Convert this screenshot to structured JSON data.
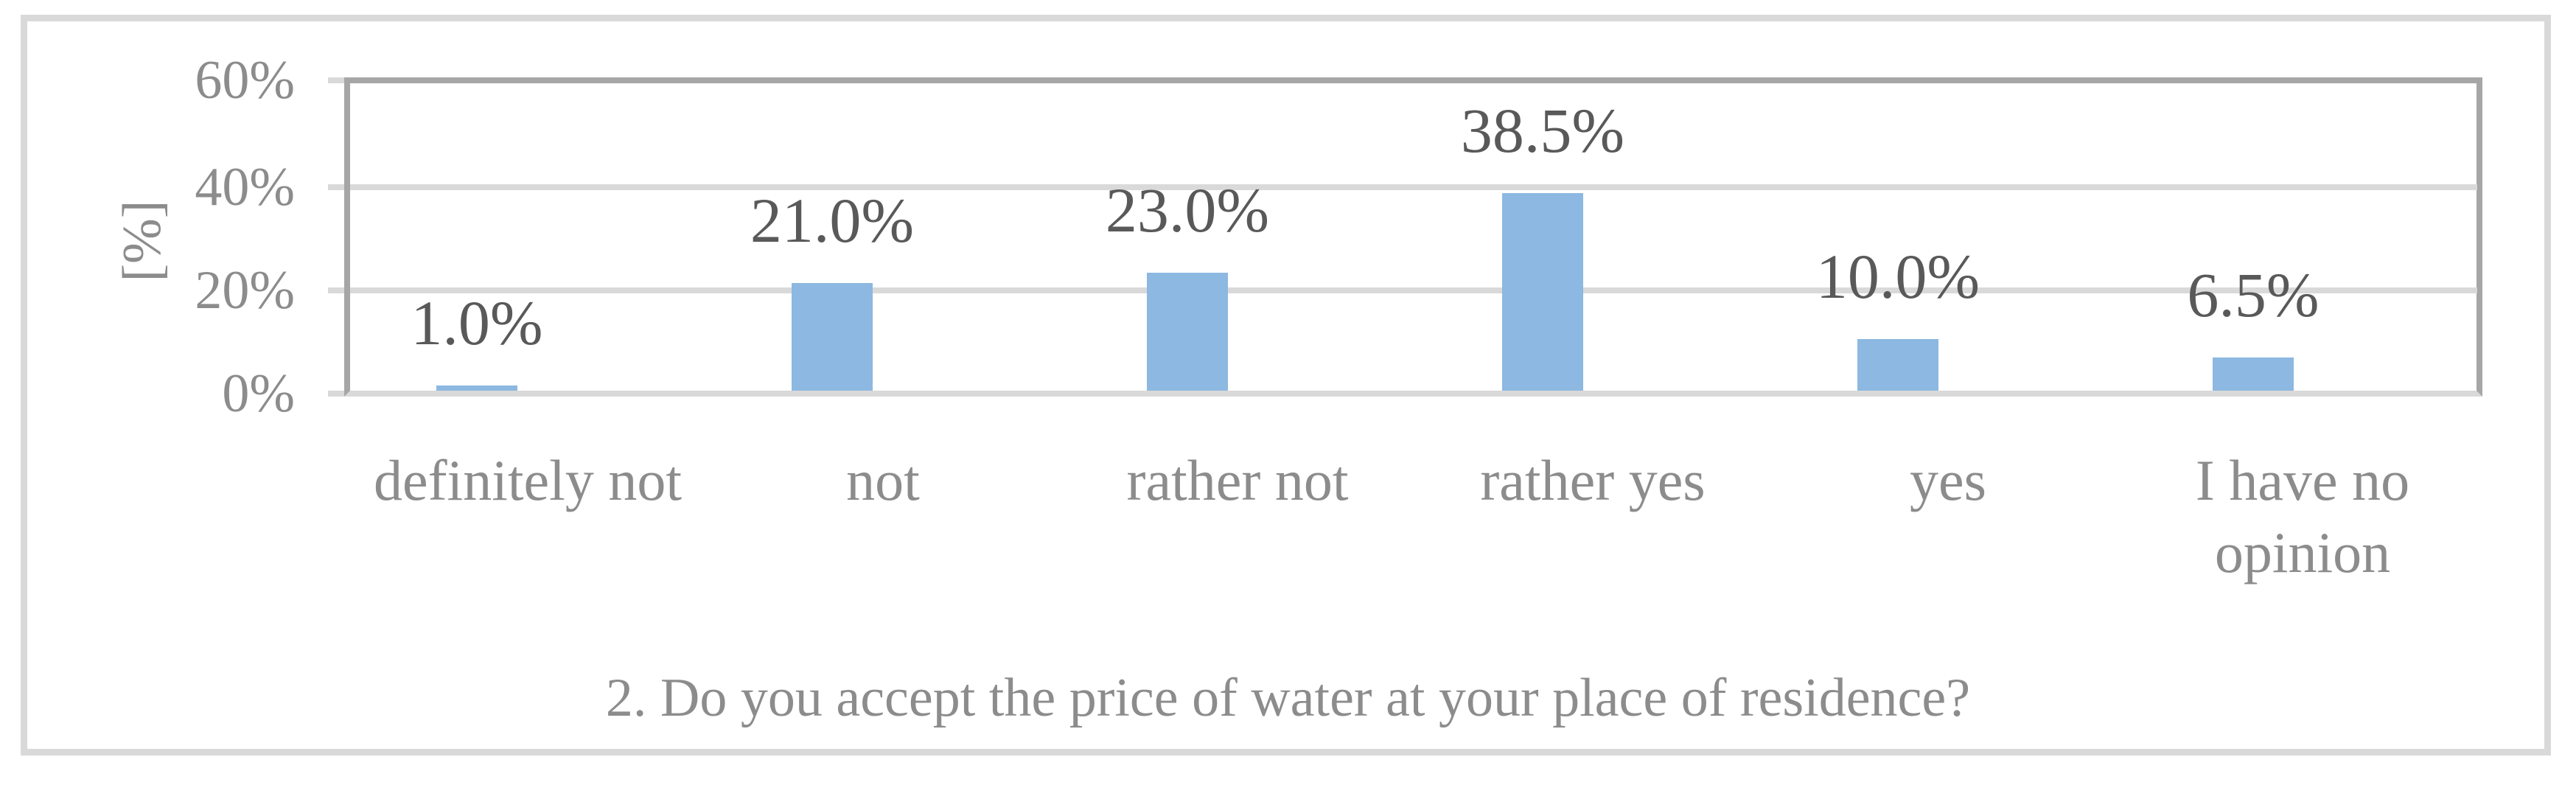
{
  "chart_data": {
    "type": "bar",
    "title": "2. Do you accept the price of water at your place of residence?",
    "ylabel": "[%]",
    "categories": [
      "definitely not",
      "not",
      "rather not",
      "rather yes",
      "yes",
      "I have no opinion"
    ],
    "values": [
      1.0,
      21.0,
      23.0,
      38.5,
      10.0,
      6.5
    ],
    "data_labels": [
      "1.0%",
      "21.0%",
      "23.0%",
      "38.5%",
      "10.0%",
      "6.5%"
    ],
    "y_ticks": [
      "60%",
      "40%",
      "20%",
      "0%"
    ],
    "ylim": [
      0,
      60
    ],
    "grid": true,
    "legend": false,
    "colors": {
      "bar": "#8CB8E1",
      "gridline": "#D9D9D9",
      "axis": "#A6A6A6",
      "data_label_text": "#595959",
      "axis_text": "#8C8C8C"
    }
  }
}
